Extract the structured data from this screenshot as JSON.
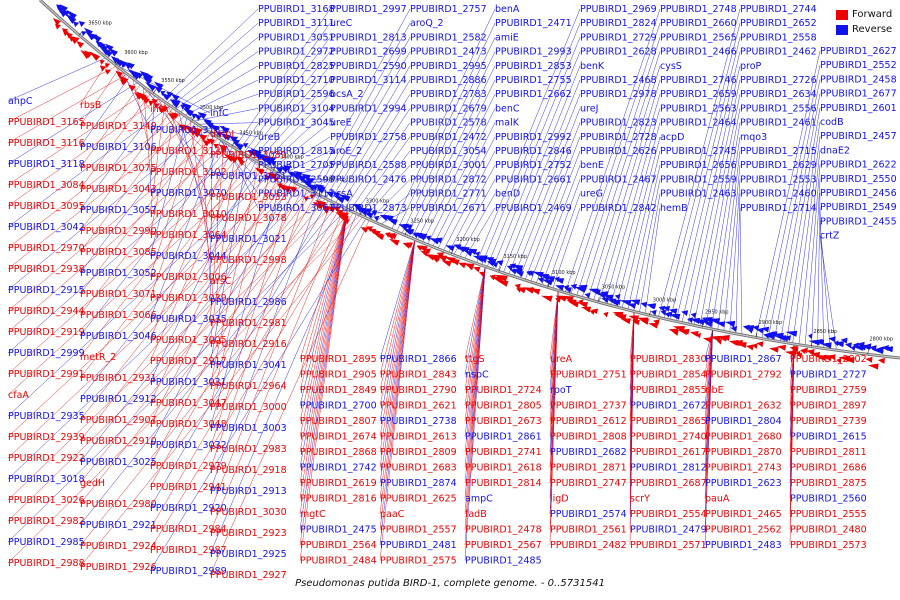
{
  "legend": {
    "forward_label": "Forward",
    "reverse_label": "Reverse",
    "forward_color": "#ee0000",
    "reverse_color": "#1111ee"
  },
  "caption": "Pseudomonas putida BIRD-1, complete genome. - 0..5731541",
  "tick_labels": [
    "3650 kbp",
    "3600 kbp",
    "3550 kbp",
    "3500 kbp",
    "3450 kbp",
    "3400 kbp",
    "3350 kbp",
    "3300 kbp",
    "3250 kbp",
    "3200 kbp",
    "3150 kbp",
    "3100 kbp",
    "3050 kbp",
    "3000 kbp",
    "2950 kbp",
    "2900 kbp",
    "2850 kbp",
    "2800 kbp"
  ],
  "reverse_labels_top": [
    "PPUBIRD1_3168",
    "PPUBIRD1_3111",
    "PPUBIRD1_3051",
    "PPUBIRD1_2972",
    "PPUBIRD1_2825",
    "PPUBIRD1_2710",
    "PPUBIRD1_2596",
    "PPUBIRD1_3104",
    "PPUBIRD1_3045",
    "ureB",
    "PPUBIRD1_2815",
    "PPUBIRD1_2705",
    "PPUBIRD1_2593",
    "PPUBIRD1_3117",
    "PPUBIRD1_3063",
    "PPUBIRD1_2997",
    "ureC",
    "PPUBIRD1_2813",
    "PPUBIRD1_2699",
    "PPUBIRD1_2590",
    "PPUBIRD1_3114",
    "bcsA_2",
    "PPUBIRD1_2994",
    "ureE",
    "PPUBIRD1_2758",
    "aroE_2",
    "PPUBIRD1_2588",
    "PPUBIRD1_2476",
    "bcsA",
    "PPUBIRD1_2873",
    "PPUBIRD1_2757",
    "aroQ_2",
    "PPUBIRD1_2582",
    "PPUBIRD1_2473",
    "PPUBIRD1_2995",
    "PPUBIRD1_2886",
    "PPUBIRD1_2783",
    "PPUBIRD1_2679",
    "PPUBIRD1_2578",
    "PPUBIRD1_2472",
    "PPUBIRD1_3054",
    "PPUBIRD1_3001",
    "PPUBIRD1_2872",
    "PPUBIRD1_2771",
    "PPUBIRD1_2671",
    "benA",
    "PPUBIRD1_2471",
    "amiE",
    "PPUBIRD1_2993",
    "PPUBIRD1_2853",
    "PPUBIRD1_2755",
    "PPUBIRD1_2662",
    "benC",
    "malK",
    "PPUBIRD1_2992",
    "PPUBIRD1_2846",
    "PPUBIRD1_2752",
    "PPUBIRD1_2661",
    "benD",
    "PPUBIRD1_2469",
    "PPUBIRD1_2969",
    "PPUBIRD1_2824",
    "PPUBIRD1_2729",
    "PPUBIRD1_2628",
    "benK",
    "PPUBIRD1_2468",
    "PPUBIRD1_2978",
    "ureJ",
    "PPUBIRD1_2823",
    "PPUBIRD1_2728",
    "PPUBIRD1_2626",
    "benE",
    "PPUBIRD1_2467",
    "ureG",
    "PPUBIRD1_2842",
    "PPUBIRD1_2748",
    "PPUBIRD1_2660",
    "PPUBIRD1_2565",
    "PPUBIRD1_2466",
    "cysS",
    "PPUBIRD1_2746",
    "PPUBIRD1_2659",
    "PPUBIRD1_2563",
    "PPUBIRD1_2464",
    "acpD",
    "PPUBIRD1_2745",
    "PPUBIRD1_2656",
    "PPUBIRD1_2559",
    "PPUBIRD1_2463",
    "hemB",
    "PPUBIRD1_2744",
    "PPUBIRD1_2652",
    "PPUBIRD1_2558",
    "PPUBIRD1_2462",
    "proP",
    "PPUBIRD1_2726",
    "PPUBIRD1_2634",
    "PPUBIRD1_2556",
    "PPUBIRD1_2461",
    "mqo3",
    "PPUBIRD1_2715",
    "PPUBIRD1_2629",
    "PPUBIRD1_2553",
    "PPUBIRD1_2460",
    "PPUBIRD1_2714",
    "PPUBIRD1_2627",
    "PPUBIRD1_2552",
    "PPUBIRD1_2458",
    "PPUBIRD1_2677",
    "PPUBIRD1_2601",
    "codB",
    "PPUBIRD1_2457",
    "dnaE2",
    "PPUBIRD1_2622",
    "PPUBIRD1_2550",
    "PPUBIRD1_2456",
    "PPUBIRD1_2549",
    "PPUBIRD1_2455",
    "crtZ"
  ],
  "left_labels": [
    "ahpC",
    "rbsB",
    "ihfA",
    "infC",
    "PPUBIRD1_3165",
    "PPUBIRD1_3149",
    "PPUBIRD1_3131",
    "dmpI",
    "PPUBIRD1_3116",
    "PPUBIRD1_3106",
    "PPUBIRD1_3130",
    "PPUBIRD1_3089",
    "PPUBIRD1_3118",
    "PPUBIRD1_3075",
    "PPUBIRD1_3102",
    "PPUBIRD1_3061",
    "PPUBIRD1_3084",
    "PPUBIRD1_3043",
    "PPUBIRD1_3070",
    "PPUBIRD1_3033",
    "PPUBIRD1_3095",
    "PPUBIRD1_3057",
    "PPUBIRD1_3010",
    "PPUBIRD1_3078",
    "PPUBIRD1_3042",
    "PPUBIRD1_2990",
    "PPUBIRD1_3064",
    "PPUBIRD1_3021",
    "PPUBIRD1_2970",
    "PPUBIRD1_3085",
    "PPUBIRD1_3044",
    "PPUBIRD1_2998",
    "PPUBIRD1_2938",
    "PPUBIRD1_3052",
    "PPUBIRD1_3006",
    "arsC",
    "PPUBIRD1_2915",
    "PPUBIRD1_3071",
    "PPUBIRD1_3039",
    "PPUBIRD1_2986",
    "PPUBIRD1_2944",
    "PPUBIRD1_3066",
    "PPUBIRD1_3035",
    "PPUBIRD1_2981",
    "PPUBIRD1_2919",
    "PPUBIRD1_3046",
    "PPUBIRD1_3005",
    "PPUBIRD1_2916",
    "PPUBIRD1_2999",
    "metR_2",
    "PPUBIRD1_2917",
    "PPUBIRD1_3041",
    "PPUBIRD1_2991",
    "PPUBIRD1_2931",
    "PPUBIRD1_3031",
    "PPUBIRD1_2964",
    "cfaA",
    "PPUBIRD1_2912",
    "PPUBIRD1_3047",
    "PPUBIRD1_3000",
    "PPUBIRD1_2935",
    "PPUBIRD1_2907",
    "PPUBIRD1_3048",
    "PPUBIRD1_3003",
    "PPUBIRD1_2939",
    "PPUBIRD1_2910",
    "PPUBIRD1_3032",
    "PPUBIRD1_2983",
    "PPUBIRD1_2922",
    "PPUBIRD1_3025",
    "PPUBIRD1_2979",
    "PPUBIRD1_2918",
    "PPUBIRD1_3018",
    "gedH",
    "PPUBIRD1_2941",
    "PPUBIRD1_2913",
    "PPUBIRD1_3026",
    "PPUBIRD1_2980",
    "PPUBIRD1_2920",
    "PPUBIRD1_3030",
    "PPUBIRD1_2982",
    "PPUBIRD1_2921",
    "PPUBIRD1_2984",
    "PPUBIRD1_2923",
    "PPUBIRD1_2985",
    "PPUBIRD1_2924",
    "PPUBIRD1_2987",
    "PPUBIRD1_2925",
    "PPUBIRD1_2988",
    "PPUBIRD1_2926",
    "PPUBIRD1_2989",
    "PPUBIRD1_2927"
  ],
  "bottom_labels": [
    "PPUBIRD1_2895",
    "PPUBIRD1_2866",
    "ttgS",
    "ureA",
    "PPUBIRD1_2830",
    "PPUBIRD1_2867",
    "PPUBIRD1_2802",
    "PPUBIRD1_2905",
    "PPUBIRD1_2843",
    "nspC",
    "PPUBIRD1_2751",
    "PPUBIRD1_2854",
    "PPUBIRD1_2792",
    "PPUBIRD1_2727",
    "PPUBIRD1_2849",
    "PPUBIRD1_2790",
    "PPUBIRD1_2724",
    "rpoT",
    "PPUBIRD1_2855",
    "ribE",
    "PPUBIRD1_2759",
    "PPUBIRD1_2700",
    "PPUBIRD1_2621",
    "PPUBIRD1_2805",
    "PPUBIRD1_2737",
    "PPUBIRD1_2672",
    "PPUBIRD1_2632",
    "PPUBIRD1_2897",
    "PPUBIRD1_2807",
    "PPUBIRD1_2738",
    "PPUBIRD1_2673",
    "PPUBIRD1_2612",
    "PPUBIRD1_2865",
    "PPUBIRD1_2804",
    "PPUBIRD1_2739",
    "PPUBIRD1_2674",
    "PPUBIRD1_2613",
    "PPUBIRD1_2861",
    "PPUBIRD1_2808",
    "PPUBIRD1_2740",
    "PPUBIRD1_2680",
    "PPUBIRD1_2615",
    "PPUBIRD1_2868",
    "PPUBIRD1_2809",
    "PPUBIRD1_2741",
    "PPUBIRD1_2682",
    "PPUBIRD1_2617",
    "PPUBIRD1_2870",
    "PPUBIRD1_2811",
    "PPUBIRD1_2742",
    "PPUBIRD1_2683",
    "PPUBIRD1_2618",
    "PPUBIRD1_2871",
    "PPUBIRD1_2812",
    "PPUBIRD1_2743",
    "PPUBIRD1_2686",
    "PPUBIRD1_2619",
    "PPUBIRD1_2874",
    "PPUBIRD1_2814",
    "PPUBIRD1_2747",
    "PPUBIRD1_2687",
    "PPUBIRD1_2623",
    "PPUBIRD1_2875",
    "PPUBIRD1_2816",
    "PPUBIRD1_2625",
    "ampC",
    "ligD",
    "scrY",
    "pauA",
    "PPUBIRD1_2560",
    "mgtC",
    "paaC",
    "fadB",
    "PPUBIRD1_2574",
    "PPUBIRD1_2554",
    "PPUBIRD1_2465",
    "PPUBIRD1_2555",
    "PPUBIRD1_2475",
    "PPUBIRD1_2557",
    "PPUBIRD1_2478",
    "PPUBIRD1_2561",
    "PPUBIRD1_2479",
    "PPUBIRD1_2562",
    "PPUBIRD1_2480",
    "PPUBIRD1_2564",
    "PPUBIRD1_2481",
    "PPUBIRD1_2567",
    "PPUBIRD1_2482",
    "PPUBIRD1_2571",
    "PPUBIRD1_2483",
    "PPUBIRD1_2573",
    "PPUBIRD1_2484",
    "PPUBIRD1_2575",
    "PPUBIRD1_2485"
  ]
}
